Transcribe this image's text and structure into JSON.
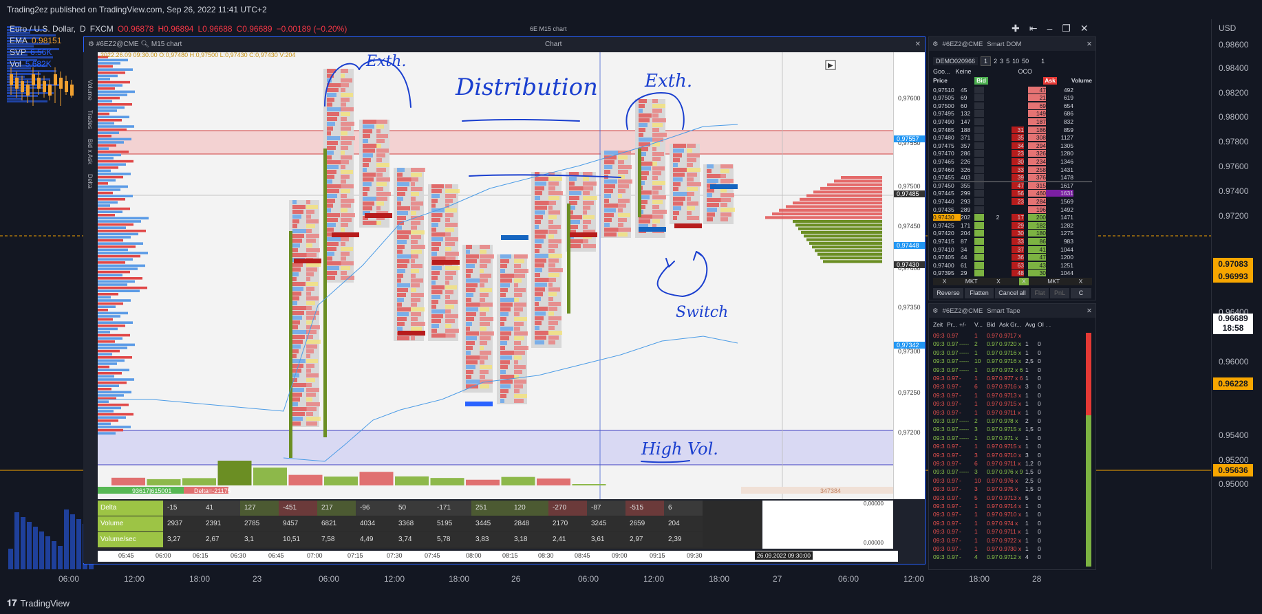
{
  "header": {
    "publish_line": "Trading2ez published on TradingView.com, Sep 26, 2022 11:41 UTC+2",
    "symbol_line": "Euro / U.S. Dollar,",
    "timeframe": "D",
    "broker": "FXCM",
    "ohlc": {
      "o": "O0.96878",
      "h": "H0.96894",
      "l": "L0.96688",
      "c": "C0.96689",
      "chg": "−0.00189 (−0.20%)"
    },
    "inner_title": "6E M15 chart"
  },
  "legend": [
    {
      "name": "EMA",
      "value": "0.98151",
      "color": "#f0a030"
    },
    {
      "name": "SVP",
      "value": "6.56K",
      "color": "#2962ff"
    },
    {
      "name": "Vol",
      "value": "5.682K",
      "color": "#2962ff"
    }
  ],
  "right_axis": {
    "currency": "USD",
    "labels": [
      "0.98600",
      "0.98400",
      "0.98200",
      "0.98000",
      "0.97800",
      "0.97600",
      "0.97400",
      "0.97200",
      "0.96800",
      "0.96400",
      "0.96000",
      "0.95800",
      "0.95400",
      "0.95200",
      "0.95000"
    ],
    "tags": [
      {
        "value": "0.97083",
        "color": "#f7a600"
      },
      {
        "value": "0.96993",
        "color": "#f7a600"
      },
      {
        "value": "0.96689",
        "sub": "18:58",
        "color": "#ffffff"
      },
      {
        "value": "0.96228",
        "color": "#f7a600"
      },
      {
        "value": "0.95636",
        "color": "#f7a600"
      }
    ]
  },
  "bottom_axis": [
    "06:00",
    "12:00",
    "18:00",
    "23",
    "06:00",
    "12:00",
    "18:00",
    "26",
    "06:00",
    "12:00",
    "18:00",
    "27",
    "06:00",
    "12:00",
    "18:00",
    "28"
  ],
  "footer": {
    "brand": "TradingView"
  },
  "chart_window": {
    "title": "Chart",
    "symbol": "#6EZ2@CME",
    "timeframe_btn": "M15 chart",
    "bar_info": "2022.26.09 09:30.00  O:0,97480 H:0,97500 L:0,97430 C:0,97430 V:204",
    "side_tabs": [
      "Volume",
      "Trades",
      "Bid x Ask",
      "Delta"
    ],
    "price_scale": [
      "0,97600",
      "0,97550",
      "0,97500",
      "0,97450",
      "0,97400",
      "0,97350",
      "0,97300",
      "0,97250",
      "0,97200"
    ],
    "price_tags": [
      {
        "value": "0,97557",
        "color": "#2196f3"
      },
      {
        "value": "0,97485",
        "color": "#333333"
      },
      {
        "value": "0,97448",
        "color": "#2196f3"
      },
      {
        "value": "0,97430",
        "color": "#333333"
      },
      {
        "value": "0,97342",
        "color": "#2196f3"
      }
    ],
    "osc_labels": [
      "0,00000",
      "0,00000"
    ],
    "cum_left": "93617|615001",
    "cum_delta": "Delta=-21175",
    "cum_right": "347384",
    "time_labels": [
      "05:45",
      "06:00",
      "06:15",
      "06:30",
      "06:45",
      "07:00",
      "07:15",
      "07:30",
      "07:45",
      "08:00",
      "08:15",
      "08:30",
      "08:45",
      "09:00",
      "09:15",
      "09:30"
    ],
    "time_cursor": "26.09.2022 09:30:00",
    "stats": {
      "rows": [
        {
          "label": "Delta",
          "values": [
            "-15",
            "41",
            "127",
            "-451",
            "217",
            "-96",
            "50",
            "-171",
            "251",
            "120",
            "-270",
            "-87",
            "-515",
            "6"
          ]
        },
        {
          "label": "Volume",
          "values": [
            "2937",
            "2391",
            "2785",
            "9457",
            "6821",
            "4034",
            "3368",
            "5195",
            "3445",
            "2848",
            "2170",
            "3245",
            "2659",
            "204"
          ]
        },
        {
          "label": "Volume/sec",
          "values": [
            "3,27",
            "2,67",
            "3,1",
            "10,51",
            "7,58",
            "4,49",
            "3,74",
            "5,78",
            "3,83",
            "3,18",
            "2,41",
            "3,61",
            "2,97",
            "2,39"
          ]
        }
      ]
    },
    "annotations": {
      "distribution": "Distribution",
      "exth_left": "Exth.",
      "exth_right": "Exth.",
      "switch": "Switch",
      "high_vol": "High Vol."
    }
  },
  "dom": {
    "symbol": "#6EZ2@CME",
    "title": "Smart DOM",
    "account": "DEMO020966",
    "qty_buttons": [
      "1",
      "2",
      "3",
      "5",
      "10",
      "50"
    ],
    "qty_value": "1",
    "provider": "Goo...",
    "none_label": "Keine",
    "oco": "OCO",
    "headers": [
      "Price",
      "Bid",
      "Ask",
      "Volume"
    ],
    "rows": [
      {
        "price": "0,97510",
        "bid": "45",
        "ask": "",
        "vol": "492",
        "askq": "47"
      },
      {
        "price": "0,97505",
        "bid": "69",
        "ask": "",
        "vol": "619",
        "askq": "21"
      },
      {
        "price": "0,97500",
        "bid": "60",
        "ask": "",
        "vol": "654",
        "askq": "69"
      },
      {
        "price": "0,97495",
        "bid": "132",
        "ask": "",
        "vol": "686",
        "askq": "149"
      },
      {
        "price": "0,97490",
        "bid": "147",
        "ask": "",
        "vol": "832",
        "askq": "187"
      },
      {
        "price": "0,97485",
        "bid": "188",
        "ask": "31",
        "vol": "859",
        "askq": "186"
      },
      {
        "price": "0,97480",
        "bid": "371",
        "ask": "35",
        "vol": "1127",
        "askq": "308"
      },
      {
        "price": "0,97475",
        "bid": "357",
        "ask": "34",
        "vol": "1305",
        "askq": "294"
      },
      {
        "price": "0,97470",
        "bid": "286",
        "ask": "23",
        "vol": "1280",
        "askq": "326"
      },
      {
        "price": "0,97465",
        "bid": "226",
        "ask": "30",
        "vol": "1346",
        "askq": "234"
      },
      {
        "price": "0,97460",
        "bid": "326",
        "ask": "33",
        "vol": "1431",
        "askq": "258"
      },
      {
        "price": "0,97455",
        "bid": "403",
        "ask": "39",
        "vol": "1478",
        "askq": "376"
      },
      {
        "price": "0,97450",
        "bid": "355",
        "ask": "47",
        "vol": "1617",
        "askq": "315"
      },
      {
        "price": "0,97445",
        "bid": "299",
        "ask": "56",
        "vol": "1631",
        "askq": "460"
      },
      {
        "price": "0,97440",
        "bid": "293",
        "ask": "23",
        "vol": "1569",
        "askq": "284"
      },
      {
        "price": "0,97435",
        "bid": "289",
        "ask": "",
        "vol": "1492",
        "askq": "196"
      },
      {
        "price": "0,97430",
        "bid": "202",
        "ask": "17",
        "vol": "1471",
        "askq": "200",
        "mid": "2"
      },
      {
        "price": "0,97425",
        "bid": "171",
        "ask": "29",
        "vol": "1282",
        "askq": "182"
      },
      {
        "price": "0,97420",
        "bid": "204",
        "ask": "30",
        "vol": "1275",
        "askq": "180"
      },
      {
        "price": "0,97415",
        "bid": "87",
        "ask": "33",
        "vol": "983",
        "askq": "86"
      },
      {
        "price": "0,97410",
        "bid": "34",
        "ask": "37",
        "vol": "1044",
        "askq": "41"
      },
      {
        "price": "0,97405",
        "bid": "44",
        "ask": "36",
        "vol": "1200",
        "askq": "47"
      },
      {
        "price": "0,97400",
        "bid": "61",
        "ask": "63",
        "vol": "1251",
        "askq": "43"
      },
      {
        "price": "0,97395",
        "bid": "29",
        "ask": "48",
        "vol": "1044",
        "askq": "30"
      }
    ],
    "order_bar": [
      "X",
      "MKT",
      "X",
      "X",
      "MKT",
      "X"
    ],
    "actions": [
      "Reverse",
      "Flatten",
      "Cancel all",
      "Flat",
      "PnL",
      "C"
    ]
  },
  "tape": {
    "symbol": "#6EZ2@CME",
    "title": "Smart Tape",
    "headers": [
      "Zeit",
      "Pr...",
      "+/-",
      "V...",
      "Bid",
      "Ask",
      "Gr...",
      "Avg",
      "OI",
      ". ."
    ],
    "rows": [
      {
        "t": "09:3",
        "p": "0.97",
        "s": "",
        "v": "1",
        "b": "0.97",
        "a": "0.97",
        "g": "17 x",
        "avg": "",
        "oi": "",
        "c": "red"
      },
      {
        "t": "09:3",
        "p": "0.97",
        "s": "-----",
        "v": "2",
        "b": "0.97",
        "a": "0.97",
        "g": "20 x",
        "avg": "1",
        "oi": "0",
        "c": "green"
      },
      {
        "t": "09:3",
        "p": "0.97",
        "s": "-----",
        "v": "1",
        "b": "0.97",
        "a": "0.97",
        "g": "16 x",
        "avg": "1",
        "oi": "0",
        "c": "green"
      },
      {
        "t": "09:3",
        "p": "0.97",
        "s": "-----",
        "v": "10",
        "b": "0.97",
        "a": "0.97",
        "g": "16 x",
        "avg": "2,5",
        "oi": "0",
        "c": "green"
      },
      {
        "t": "09:3",
        "p": "0.97",
        "s": "-----",
        "v": "1",
        "b": "0.97",
        "a": "0.97",
        "g": "2 x 6",
        "avg": "1",
        "oi": "0",
        "c": "green"
      },
      {
        "t": "09:3",
        "p": "0.97",
        "s": "-",
        "v": "1",
        "b": "0.97",
        "a": "0.97",
        "g": "7 x 6",
        "avg": "1",
        "oi": "0",
        "c": "red"
      },
      {
        "t": "09:3",
        "p": "0.97",
        "s": "-",
        "v": "6",
        "b": "0.97",
        "a": "0.97",
        "g": "16 x",
        "avg": "3",
        "oi": "0",
        "c": "red"
      },
      {
        "t": "09:3",
        "p": "0.97",
        "s": "-",
        "v": "1",
        "b": "0.97",
        "a": "0.97",
        "g": "13 x",
        "avg": "1",
        "oi": "0",
        "c": "red"
      },
      {
        "t": "09:3",
        "p": "0.97",
        "s": "-",
        "v": "1",
        "b": "0.97",
        "a": "0.97",
        "g": "15 x",
        "avg": "1",
        "oi": "0",
        "c": "red"
      },
      {
        "t": "09:3",
        "p": "0.97",
        "s": "-",
        "v": "1",
        "b": "0.97",
        "a": "0.97",
        "g": "11 x",
        "avg": "1",
        "oi": "0",
        "c": "red"
      },
      {
        "t": "09:3",
        "p": "0.97",
        "s": "-----",
        "v": "2",
        "b": "0.97",
        "a": "0.97",
        "g": "8 x",
        "avg": "2",
        "oi": "0",
        "c": "green"
      },
      {
        "t": "09:3",
        "p": "0.97",
        "s": "-----",
        "v": "3",
        "b": "0.97",
        "a": "0.97",
        "g": "15 x",
        "avg": "1,5",
        "oi": "0",
        "c": "green"
      },
      {
        "t": "09:3",
        "p": "0.97",
        "s": "-----",
        "v": "1",
        "b": "0.97",
        "a": "0.97",
        "g": "1 x",
        "avg": "1",
        "oi": "0",
        "c": "green"
      },
      {
        "t": "09:3",
        "p": "0.97",
        "s": "-",
        "v": "1",
        "b": "0.97",
        "a": "0.97",
        "g": "15 x",
        "avg": "1",
        "oi": "0",
        "c": "red"
      },
      {
        "t": "09:3",
        "p": "0.97",
        "s": "-",
        "v": "3",
        "b": "0.97",
        "a": "0.97",
        "g": "10 x",
        "avg": "3",
        "oi": "0",
        "c": "red"
      },
      {
        "t": "09:3",
        "p": "0.97",
        "s": "-",
        "v": "6",
        "b": "0.97",
        "a": "0.97",
        "g": "11 x",
        "avg": "1,2",
        "oi": "0",
        "c": "red"
      },
      {
        "t": "09:3",
        "p": "0.97",
        "s": "-----",
        "v": "3",
        "b": "0.97",
        "a": "0.97",
        "g": "6 x 9",
        "avg": "1,5",
        "oi": "0",
        "c": "green"
      },
      {
        "t": "09:3",
        "p": "0.97",
        "s": "-",
        "v": "10",
        "b": "0.97",
        "a": "0.97",
        "g": "6 x",
        "avg": "2,5",
        "oi": "0",
        "c": "red"
      },
      {
        "t": "09:3",
        "p": "0.97",
        "s": "-",
        "v": "3",
        "b": "0.97",
        "a": "0.97",
        "g": "5 x",
        "avg": "1,5",
        "oi": "0",
        "c": "red"
      },
      {
        "t": "09:3",
        "p": "0.97",
        "s": "-",
        "v": "5",
        "b": "0.97",
        "a": "0.97",
        "g": "13 x",
        "avg": "5",
        "oi": "0",
        "c": "red"
      },
      {
        "t": "09:3",
        "p": "0.97",
        "s": "-",
        "v": "1",
        "b": "0.97",
        "a": "0.97",
        "g": "14 x",
        "avg": "1",
        "oi": "0",
        "c": "red"
      },
      {
        "t": "09:3",
        "p": "0.97",
        "s": "-",
        "v": "1",
        "b": "0.97",
        "a": "0.97",
        "g": "10 x",
        "avg": "1",
        "oi": "0",
        "c": "red"
      },
      {
        "t": "09:3",
        "p": "0.97",
        "s": "-",
        "v": "1",
        "b": "0.97",
        "a": "0.97",
        "g": "4 x",
        "avg": "1",
        "oi": "0",
        "c": "red"
      },
      {
        "t": "09:3",
        "p": "0.97",
        "s": "-",
        "v": "1",
        "b": "0.97",
        "a": "0.97",
        "g": "11 x",
        "avg": "1",
        "oi": "0",
        "c": "red"
      },
      {
        "t": "09:3",
        "p": "0.97",
        "s": "-",
        "v": "1",
        "b": "0.97",
        "a": "0.97",
        "g": "22 x",
        "avg": "1",
        "oi": "0",
        "c": "red"
      },
      {
        "t": "09:3",
        "p": "0.97",
        "s": "-",
        "v": "1",
        "b": "0.97",
        "a": "0.97",
        "g": "30 x",
        "avg": "1",
        "oi": "0",
        "c": "red"
      },
      {
        "t": "09:3",
        "p": "0.97",
        "s": "-",
        "v": "4",
        "b": "0.97",
        "a": "0.97",
        "g": "12 x",
        "avg": "4",
        "oi": "0",
        "c": "green"
      }
    ]
  }
}
